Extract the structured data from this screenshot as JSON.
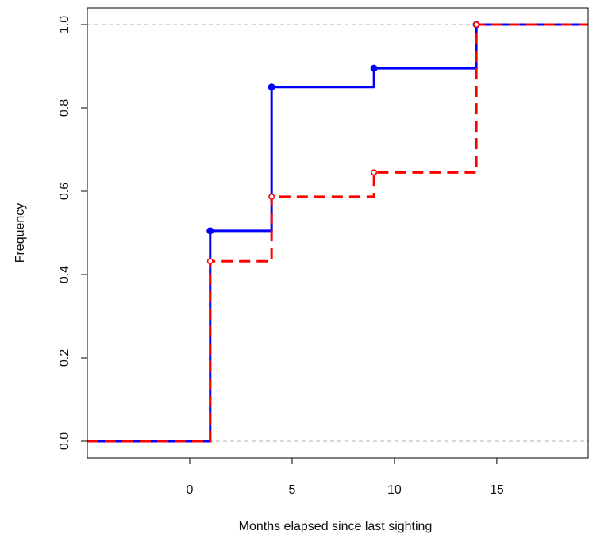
{
  "chart_data": {
    "type": "line",
    "subtype": "step",
    "title": "",
    "xlabel": "Months elapsed since last sighting",
    "ylabel": "Frequency",
    "xlim": [
      -5,
      19.5
    ],
    "ylim": [
      -0.04,
      1.04
    ],
    "x_ticks": [
      0,
      5,
      10,
      15
    ],
    "y_ticks": [
      0.0,
      0.2,
      0.4,
      0.6,
      0.8,
      1.0
    ],
    "y_tick_labels": [
      "0.0",
      "0.2",
      "0.4",
      "0.6",
      "0.8",
      "1.0"
    ],
    "reference_lines": [
      {
        "y": 0.0,
        "style": "dashed",
        "color": "#b0b0b0"
      },
      {
        "y": 0.5,
        "style": "dotted",
        "color": "#333333"
      },
      {
        "y": 1.0,
        "style": "dashed",
        "color": "#b0b0b0"
      }
    ],
    "grid": false,
    "series": [
      {
        "line_style": "solid",
        "color": "#0000ff",
        "marker": "filled-circle",
        "points": [
          {
            "x": 1,
            "y": 0.505
          },
          {
            "x": 4,
            "y": 0.85
          },
          {
            "x": 9,
            "y": 0.895
          },
          {
            "x": 14,
            "y": 1.0
          }
        ]
      },
      {
        "line_style": "dashed",
        "color": "#ff0000",
        "marker": "open-circle",
        "points": [
          {
            "x": 1,
            "y": 0.432
          },
          {
            "x": 4,
            "y": 0.587
          },
          {
            "x": 9,
            "y": 0.645
          },
          {
            "x": 14,
            "y": 1.0
          }
        ]
      }
    ]
  }
}
